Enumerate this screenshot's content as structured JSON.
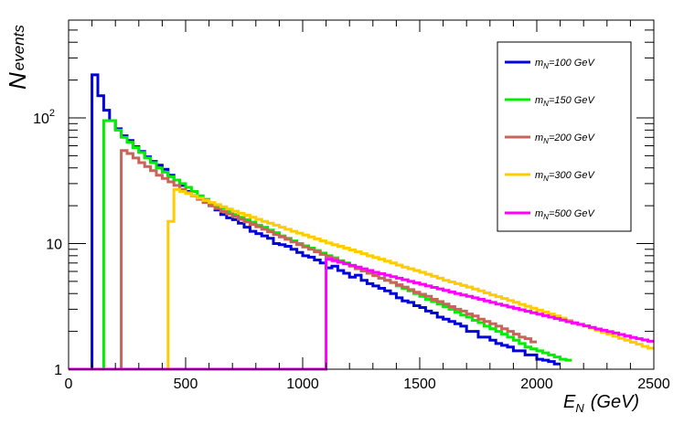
{
  "chart_data": {
    "type": "line",
    "xlabel": "E",
    "xlabel_sub": "N",
    "xlabel_unit": "(GeV)",
    "ylabel": "N",
    "ylabel_sub": "events",
    "xlim": [
      0,
      2500
    ],
    "ylim": [
      1,
      600
    ],
    "yscale": "log",
    "grid": false,
    "legend_position": "top-right",
    "x_ticks": [
      "0",
      "500",
      "1000",
      "1500",
      "2000",
      "2500"
    ],
    "y_ticks": [
      {
        "value": 1,
        "label": "1"
      },
      {
        "value": 10,
        "label": "10"
      },
      {
        "value": 100,
        "label": "10",
        "sup": "2"
      }
    ],
    "bin_width": 25,
    "series": [
      {
        "name": "m_N=100 GeV",
        "legend_main": "m",
        "legend_sub": "N",
        "legend_rest": "=100 GeV",
        "color": "#0000dd",
        "start": 100,
        "values": [
          220,
          150,
          115,
          95,
          82,
          72,
          66,
          59,
          54,
          49,
          45,
          42,
          39,
          35,
          32,
          29,
          26,
          24,
          23,
          21.5,
          20,
          18.5,
          17,
          16,
          15.5,
          14.5,
          13.5,
          12.5,
          12,
          11.5,
          11,
          10,
          9.8,
          9.5,
          9,
          8.5,
          8,
          7.8,
          7.4,
          7,
          6.4,
          6.6,
          6.1,
          5.8,
          5.4,
          5.6,
          5.1,
          4.8,
          4.6,
          4.4,
          4.2,
          4.0,
          3.7,
          3.5,
          3.4,
          3.2,
          3.1,
          2.9,
          2.8,
          2.6,
          2.5,
          2.4,
          2.3,
          2.2,
          2.0,
          2.0,
          1.8,
          1.8,
          1.7,
          1.6,
          1.55,
          1.5,
          1.4,
          1.4,
          1.3,
          1.3,
          1.2,
          1.18,
          1.15,
          1.1
        ]
      },
      {
        "name": "m_N=150 GeV",
        "legend_main": "m",
        "legend_sub": "N",
        "legend_rest": "=150 GeV",
        "color": "#00ee00",
        "start": 150,
        "values": [
          95,
          95,
          80,
          70,
          64,
          58,
          53,
          48,
          44,
          40,
          37,
          34,
          32,
          30,
          28,
          26,
          24,
          22.5,
          21,
          20,
          19,
          18,
          17,
          16.2,
          15.5,
          14.8,
          14,
          13.5,
          12.8,
          12.2,
          11.5,
          11,
          10.5,
          10,
          9.6,
          9.2,
          8.8,
          8.4,
          8,
          7.7,
          7.3,
          7,
          6.7,
          6.4,
          6.1,
          5.8,
          5.6,
          5.3,
          5.1,
          4.9,
          4.6,
          4.4,
          4.2,
          4.0,
          3.8,
          3.6,
          3.45,
          3.3,
          3.15,
          3.0,
          2.85,
          2.7,
          2.6,
          2.45,
          2.35,
          2.2,
          2.1,
          2.0,
          1.9,
          1.8,
          1.7,
          1.6,
          1.5,
          1.45,
          1.4,
          1.35,
          1.3,
          1.25,
          1.2,
          1.18
        ]
      },
      {
        "name": "m_N=200 GeV",
        "legend_main": "m",
        "legend_sub": "N",
        "legend_rest": "=200 GeV",
        "color": "#c8645a",
        "start": 225,
        "values": [
          55,
          52,
          48,
          44,
          41,
          38,
          35,
          33,
          31,
          29,
          27,
          25.5,
          24,
          22.5,
          21.2,
          20,
          19,
          18,
          17.2,
          16.4,
          15.6,
          14.9,
          14.2,
          13.6,
          13,
          12.4,
          11.8,
          11.3,
          10.8,
          10.3,
          9.8,
          9.4,
          9,
          8.6,
          8.2,
          7.9,
          7.5,
          7.2,
          6.9,
          6.6,
          6.3,
          6.05,
          5.8,
          5.55,
          5.3,
          5.1,
          4.9,
          4.7,
          4.5,
          4.3,
          4.1,
          3.95,
          3.8,
          3.6,
          3.45,
          3.3,
          3.15,
          3.0,
          2.9,
          2.75,
          2.65,
          2.5,
          2.4,
          2.3,
          2.2,
          2.1,
          2.0,
          1.9,
          1.8,
          1.75,
          1.65
        ]
      },
      {
        "name": "m_N=300 GeV",
        "legend_main": "m",
        "legend_sub": "N",
        "legend_rest": "=300 GeV",
        "color": "#ffcc00",
        "start": 425,
        "values": [
          15,
          27,
          26,
          25,
          24,
          23,
          22,
          21.2,
          20.4,
          19.6,
          18.8,
          18.1,
          17.4,
          16.8,
          16.2,
          15.6,
          15,
          14.5,
          14,
          13.5,
          13,
          12.5,
          12.1,
          11.7,
          11.3,
          10.9,
          10.5,
          10.1,
          9.8,
          9.5,
          9.2,
          8.9,
          8.6,
          8.3,
          8,
          7.75,
          7.5,
          7.25,
          7,
          6.75,
          6.5,
          6.3,
          6.1,
          5.9,
          5.7,
          5.5,
          5.3,
          5.1,
          4.95,
          4.8,
          4.65,
          4.5,
          4.35,
          4.2,
          4.05,
          3.9,
          3.78,
          3.65,
          3.52,
          3.4,
          3.28,
          3.17,
          3.06,
          2.95,
          2.85,
          2.75,
          2.65,
          2.55,
          2.45,
          2.36,
          2.28,
          2.2,
          2.12,
          2.04,
          1.97,
          1.9,
          1.83,
          1.76,
          1.7,
          1.64,
          1.58,
          1.52,
          1.47
        ]
      },
      {
        "name": "m_N=500 GeV",
        "legend_main": "m",
        "legend_sub": "N",
        "legend_rest": "=500 GeV",
        "color": "#ff00ff",
        "start": 1100,
        "values": [
          7.5,
          7.3,
          7.1,
          6.9,
          6.7,
          6.5,
          6.3,
          6.1,
          5.9,
          5.75,
          5.6,
          5.45,
          5.3,
          5.15,
          5.0,
          4.87,
          4.74,
          4.6,
          4.48,
          4.36,
          4.24,
          4.12,
          4.0,
          3.9,
          3.8,
          3.7,
          3.6,
          3.5,
          3.4,
          3.3,
          3.22,
          3.13,
          3.05,
          2.97,
          2.89,
          2.81,
          2.74,
          2.67,
          2.6,
          2.53,
          2.46,
          2.39,
          2.33,
          2.27,
          2.21,
          2.15,
          2.09,
          2.04,
          1.99,
          1.94,
          1.89,
          1.84,
          1.79,
          1.75,
          1.71,
          1.67
        ]
      }
    ]
  }
}
